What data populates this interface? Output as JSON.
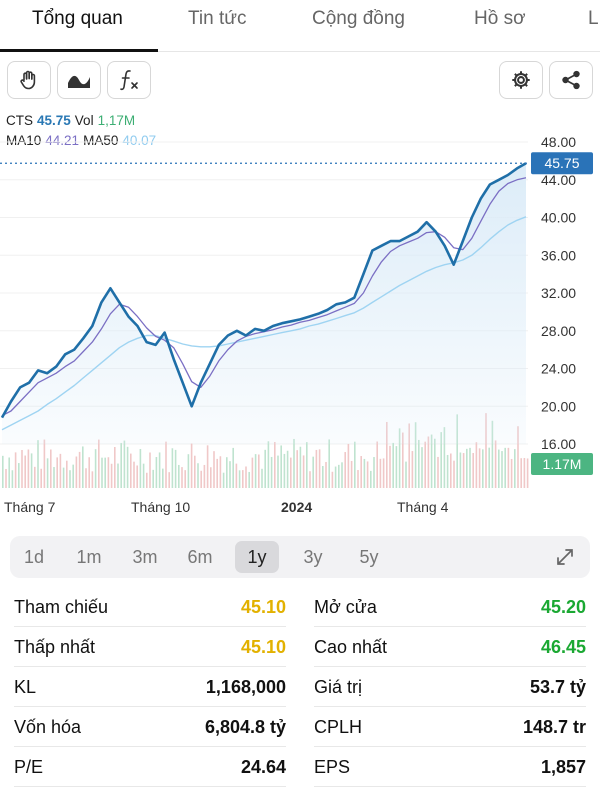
{
  "tabs": [
    {
      "label": "Tổng quan",
      "active": true
    },
    {
      "label": "Tin tức",
      "active": false
    },
    {
      "label": "Cộng đồng",
      "active": false
    },
    {
      "label": "Hồ sơ",
      "active": false
    },
    {
      "label": "L",
      "active": false
    }
  ],
  "toolbar": {
    "left_icons": [
      "hand-icon",
      "wave-icon",
      "function-icon"
    ],
    "right_icons": [
      "gear-icon",
      "share-icon"
    ]
  },
  "chart_info": {
    "symbol": "CTS",
    "price": "45.75",
    "vol_label": "Vol",
    "vol": "1,17M",
    "ma10_label": "MA10",
    "ma10": "44.21",
    "ma50_label": "MA50",
    "ma50": "40.07"
  },
  "chart_data": {
    "type": "line",
    "x_labels": [
      "Tháng 7",
      "Tháng 10",
      "2024",
      "Tháng 4"
    ],
    "y_ticks": [
      "48.00",
      "44.00",
      "40.00",
      "36.00",
      "32.00",
      "28.00",
      "24.00",
      "20.00",
      "16.00"
    ],
    "ylim": [
      16,
      48
    ],
    "last_price_label": "45.75",
    "volume_label": "1.17M",
    "series": [
      {
        "name": "CTS",
        "values": [
          18.8,
          20.5,
          22.0,
          22.5,
          23.8,
          23.5,
          24.2,
          25.5,
          26.0,
          27.2,
          28.5,
          31.0,
          32.5,
          31.0,
          29.5,
          28.5,
          26.8,
          26.5,
          27.8,
          25.0,
          22.5,
          20.0,
          22.5,
          24.5,
          26.5,
          27.5,
          28.0,
          27.5,
          28.2,
          28.0,
          28.5,
          28.8,
          29.0,
          29.2,
          29.5,
          29.8,
          30.2,
          30.8,
          31.0,
          31.5,
          34.0,
          36.5,
          37.0,
          37.5,
          37.5,
          38.0,
          38.5,
          39.5,
          38.5,
          37.0,
          35.0,
          37.5,
          40.0,
          42.0,
          43.5,
          44.0,
          44.5,
          45.2,
          45.75
        ]
      },
      {
        "name": "MA10",
        "values": [
          19.0,
          19.5,
          20.5,
          21.5,
          22.5,
          23.0,
          23.5,
          24.2,
          24.8,
          25.8,
          26.8,
          28.2,
          29.8,
          30.8,
          30.5,
          29.5,
          28.3,
          27.4,
          27.0,
          26.2,
          24.5,
          22.6,
          22.0,
          23.2,
          24.8,
          26.0,
          26.9,
          27.4,
          27.7,
          27.9,
          28.1,
          28.4,
          28.6,
          28.9,
          29.1,
          29.4,
          29.7,
          30.1,
          30.5,
          30.9,
          32.0,
          33.8,
          35.3,
          36.4,
          37.0,
          37.4,
          37.8,
          38.4,
          38.5,
          37.9,
          36.8,
          36.6,
          37.8,
          39.6,
          41.4,
          42.8,
          43.6,
          44.0,
          44.21
        ]
      },
      {
        "name": "MA50",
        "values": [
          17.5,
          18.0,
          18.5,
          19.0,
          19.5,
          20.2,
          20.8,
          21.5,
          22.2,
          23.0,
          23.8,
          24.6,
          25.4,
          26.2,
          26.8,
          27.2,
          27.5,
          27.5,
          27.2,
          26.9,
          26.6,
          26.4,
          26.3,
          26.3,
          26.4,
          26.6,
          26.8,
          27.0,
          27.2,
          27.4,
          27.6,
          27.8,
          28.0,
          28.2,
          28.5,
          28.7,
          29.0,
          29.3,
          29.6,
          29.9,
          30.4,
          31.0,
          31.6,
          32.2,
          32.8,
          33.3,
          33.8,
          34.3,
          34.7,
          35.0,
          35.2,
          35.5,
          36.0,
          36.8,
          37.7,
          38.5,
          39.2,
          39.7,
          40.07
        ]
      }
    ],
    "colors": {
      "price": "#1f6fa8",
      "ma10": "#7b6fc4",
      "ma50": "#9fd4f2",
      "area": "#dcecf8",
      "label_bg": "#2a73b8",
      "volume_bg": "#4cb582"
    }
  },
  "periods": [
    {
      "label": "1d",
      "active": false
    },
    {
      "label": "1m",
      "active": false
    },
    {
      "label": "3m",
      "active": false
    },
    {
      "label": "6m",
      "active": false
    },
    {
      "label": "1y",
      "active": true
    },
    {
      "label": "3y",
      "active": false
    },
    {
      "label": "5y",
      "active": false
    }
  ],
  "stats": [
    {
      "left_label": "Tham chiếu",
      "left_value": "45.10",
      "left_color": "#e2b100",
      "right_label": "Mở cửa",
      "right_value": "45.20",
      "right_color": "#1aa832"
    },
    {
      "left_label": "Thấp nhất",
      "left_value": "45.10",
      "left_color": "#e2b100",
      "right_label": "Cao nhất",
      "right_value": "46.45",
      "right_color": "#1aa832"
    },
    {
      "left_label": "KL",
      "left_value": "1,168,000",
      "left_color": "#111111",
      "right_label": "Giá trị",
      "right_value": "53.7 tỷ",
      "right_color": "#111111"
    },
    {
      "left_label": "Vốn hóa",
      "left_value": "6,804.8 tỷ",
      "left_color": "#111111",
      "right_label": "CPLH",
      "right_value": "148.7 tr",
      "right_color": "#111111"
    },
    {
      "left_label": "P/E",
      "left_value": "24.64",
      "left_color": "#111111",
      "right_label": "EPS",
      "right_value": "1,857",
      "right_color": "#111111"
    }
  ]
}
